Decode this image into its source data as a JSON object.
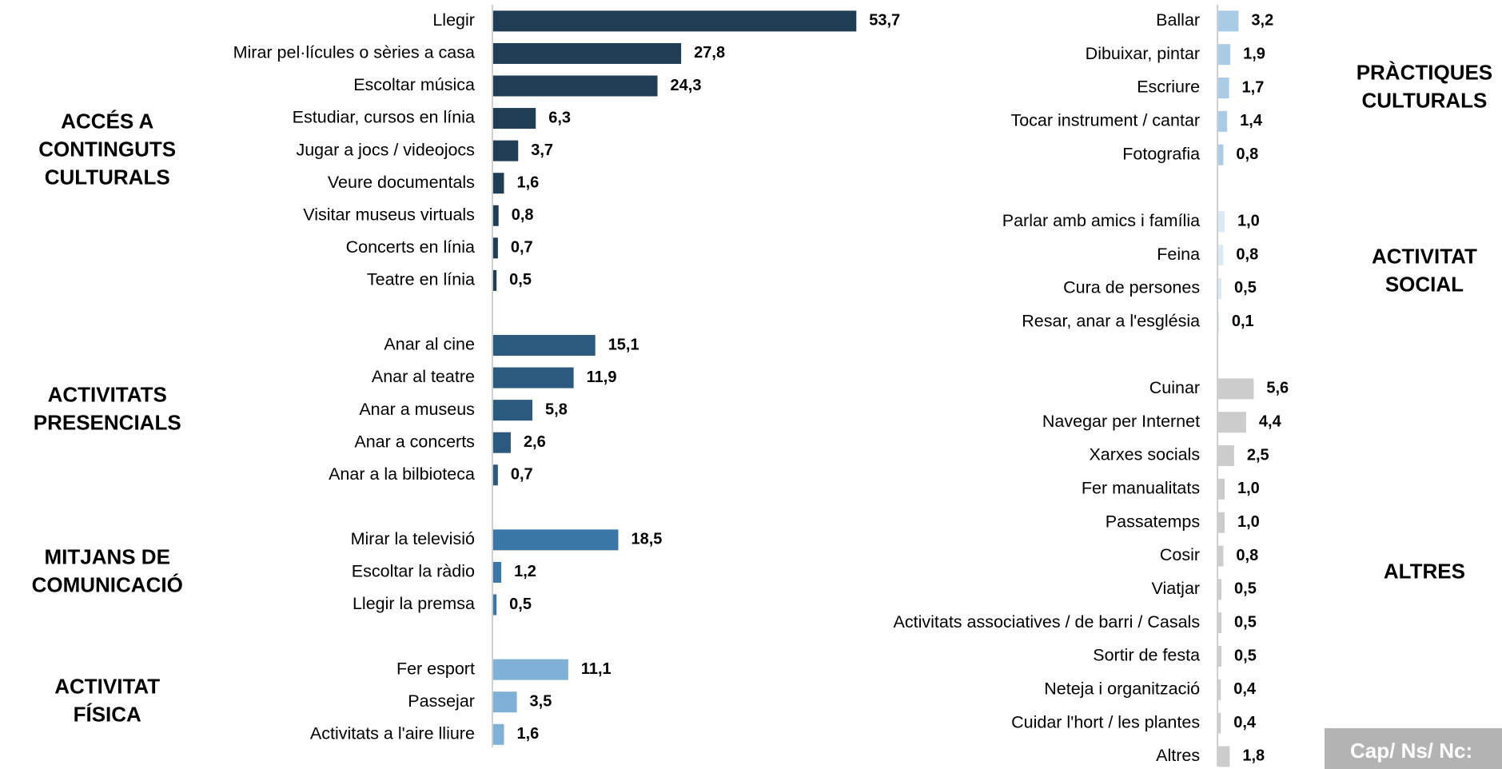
{
  "chart_data": [
    {
      "type": "bar",
      "orientation": "horizontal",
      "xlim": [
        0,
        60
      ],
      "groups": [
        {
          "name": [
            "ACCÉS A",
            "CONTINGUTS",
            "CULTURALS"
          ],
          "color": "#1f3d55",
          "categories": [
            "Llegir",
            "Mirar pel·lícules o sèries a casa",
            "Escoltar música",
            "Estudiar, cursos en línia",
            "Jugar a jocs / videojocs",
            "Veure documentals",
            "Visitar museus virtuals",
            "Concerts en línia",
            "Teatre en línia"
          ],
          "values": [
            53.7,
            27.8,
            24.3,
            6.3,
            3.7,
            1.6,
            0.8,
            0.7,
            0.5
          ],
          "value_labels": [
            "53,7",
            "27,8",
            "24,3",
            "6,3",
            "3,7",
            "1,6",
            "0,8",
            "0,7",
            "0,5"
          ]
        },
        {
          "name": [
            "ACTIVITATS",
            "PRESENCIALS"
          ],
          "color": "#2b5a7e",
          "categories": [
            "Anar al cine",
            "Anar al teatre",
            "Anar a museus",
            "Anar a concerts",
            "Anar a la bilbioteca"
          ],
          "values": [
            15.1,
            11.9,
            5.8,
            2.6,
            0.7
          ],
          "value_labels": [
            "15,1",
            "11,9",
            "5,8",
            "2,6",
            "0,7"
          ]
        },
        {
          "name": [
            "MITJANS DE",
            "COMUNICACIÓ"
          ],
          "color": "#3a76a6",
          "categories": [
            "Mirar la televisió",
            "Escoltar la ràdio",
            "Llegir la premsa"
          ],
          "values": [
            18.5,
            1.2,
            0.5
          ],
          "value_labels": [
            "18,5",
            "1,2",
            "0,5"
          ]
        },
        {
          "name": [
            "ACTIVITAT",
            "FÍSICA"
          ],
          "color": "#7fb0d6",
          "categories": [
            "Fer esport",
            "Passejar",
            "Activitats a l'aire lliure"
          ],
          "values": [
            11.1,
            3.5,
            1.6
          ],
          "value_labels": [
            "11,1",
            "3,5",
            "1,6"
          ]
        }
      ]
    },
    {
      "type": "bar",
      "orientation": "horizontal",
      "xlim": [
        0,
        60
      ],
      "groups": [
        {
          "name": [
            "PRÀCTIQUES",
            "CULTURALS"
          ],
          "color": "#a9cbe6",
          "categories": [
            "Ballar",
            "Dibuixar, pintar",
            "Escriure",
            "Tocar instrument / cantar",
            "Fotografia"
          ],
          "values": [
            3.2,
            1.9,
            1.7,
            1.4,
            0.8
          ],
          "value_labels": [
            "3,2",
            "1,9",
            "1,7",
            "1,4",
            "0,8"
          ]
        },
        {
          "name": [
            "ACTIVITAT",
            "SOCIAL"
          ],
          "color": "#dbe9f5",
          "categories": [
            "Parlar amb amics i família",
            "Feina",
            "Cura de persones",
            "Resar, anar a l'església"
          ],
          "values": [
            1.0,
            0.8,
            0.5,
            0.1
          ],
          "value_labels": [
            "1,0",
            "0,8",
            "0,5",
            "0,1"
          ]
        },
        {
          "name": [
            "ALTRES"
          ],
          "color": "#cccccc",
          "categories": [
            "Cuinar",
            "Navegar per Internet",
            "Xarxes socials",
            "Fer manualitats",
            "Passatemps",
            "Cosir",
            "Viatjar",
            "Activitats associatives / de barri / Casals",
            "Sortir de festa",
            "Neteja i organització",
            "Cuidar l'hort / les plantes",
            "Altres"
          ],
          "values": [
            5.6,
            4.4,
            2.5,
            1.0,
            1.0,
            0.8,
            0.5,
            0.5,
            0.5,
            0.4,
            0.4,
            1.8
          ],
          "value_labels": [
            "5,6",
            "4,4",
            "2,5",
            "1,0",
            "1,0",
            "0,8",
            "0,5",
            "0,5",
            "0,5",
            "0,4",
            "0,4",
            "1,8"
          ]
        }
      ]
    }
  ],
  "note": "Cap/ Ns/ Nc:"
}
